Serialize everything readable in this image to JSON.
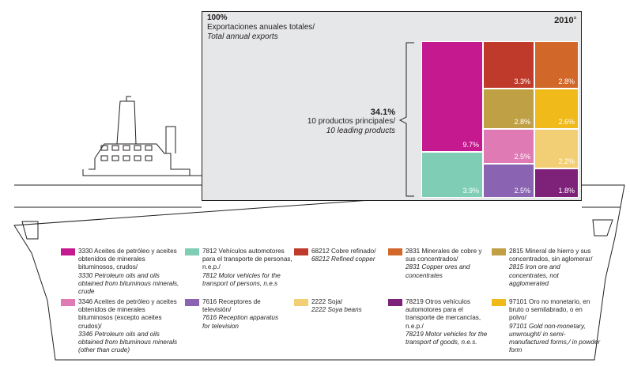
{
  "header": {
    "total_pct": "100%",
    "total_label_es": "Exportaciones anuales totales/",
    "total_label_en": "Total annual exports",
    "year": "2010",
    "year_note": "a"
  },
  "leading": {
    "pct": "34.1%",
    "label_es": "10 productos principales/",
    "label_en": "10 leading products"
  },
  "chart_data": {
    "type": "treemap",
    "total_label": "Exportaciones anuales totales/Total annual exports",
    "year": "2010",
    "leading_share": 34.1,
    "products": [
      {
        "code": "3330",
        "label_es": "Aceites de petróleo y aceites obtenidos de minerales bituminosos, crudos/",
        "label_en": "3330 Petroleum oils and oils obtained from bituminous minerals, crude",
        "value": 9.7,
        "color": "#c5198f",
        "display": "9.7%"
      },
      {
        "code": "7812",
        "label_es": "Vehículos automotores para el transporte de personas, n.e.p./",
        "label_en": "7812 Motor vehicles for the transport of persons, n.e.s",
        "value": 3.9,
        "color": "#7fcdb4",
        "display": "3.9%"
      },
      {
        "code": "68212",
        "label_es": "Cobre refinado/",
        "label_en": "68212 Refined copper",
        "value": 3.3,
        "color": "#c03a2b",
        "display": "3.3%"
      },
      {
        "code": "2831",
        "label_es": "Minerales de cobre y sus concentrados/",
        "label_en": "2831 Copper ores and concentrates",
        "value": 2.8,
        "color": "#d2672a",
        "display": "2.8%"
      },
      {
        "code": "2815",
        "label_es": "Mineral de hierro y sus concentrados, sin aglomerar/",
        "label_en": "2815 Iron ore and concentrates, not agglomerated",
        "value": 2.8,
        "color": "#bfa044",
        "display": "2.8%"
      },
      {
        "code": "97101",
        "label_es": "Oro no monetario, en bruto o semilabrado, o en polvo/",
        "label_en": "97101 Gold non-monetary, unwrought/ in semi-manufactured forms,/ in powder form",
        "value": 2.6,
        "color": "#efba1a",
        "display": "2.6%"
      },
      {
        "code": "3346",
        "label_es": "Aceites de petróleo y aceites obtenidos de minerales bituminosos (excepto aceites crudos)/",
        "label_en": "3346 Petroleum oils and oils obtained from bituminous minerals (other than crude)",
        "value": 2.5,
        "color": "#e07ab5",
        "display": "2.5%"
      },
      {
        "code": "7616",
        "label_es": "Receptores de televisión/",
        "label_en": "7616 Reception apparatus for television",
        "value": 2.5,
        "color": "#8a63b3",
        "display": "2.5%"
      },
      {
        "code": "2222",
        "label_es": "Soja/",
        "label_en": "2222 Soya beans",
        "value": 2.2,
        "color": "#f2cf74",
        "display": "2.2%"
      },
      {
        "code": "78219",
        "label_es": "Otros vehículos automotores para el transporte de mercancías, n.e.p./",
        "label_en": "78219 Motor vehicles for the transport of goods, n.e.s.",
        "value": 1.8,
        "color": "#7d2278",
        "display": "1.8%"
      }
    ]
  },
  "legend": [
    {
      "color": "#c5198f",
      "es": "3330 Aceites de petróleo y aceites obtenidos de minerales bituminosos, crudos/",
      "en": "3330 Petroleum oils and oils obtained from bituminous minerals, crude"
    },
    {
      "color": "#7fcdb4",
      "es": "7812 Vehículos automotores para el transporte de personas, n.e.p./",
      "en": "7812 Motor vehicles for the transport of persons, n.e.s"
    },
    {
      "color": "#c03a2b",
      "es": "68212 Cobre refinado/",
      "en": "68212 Refined copper"
    },
    {
      "color": "#d2672a",
      "es": "2831 Minerales de cobre y sus concentrados/",
      "en": "2831 Copper ores and concentrates"
    },
    {
      "color": "#bfa044",
      "es": "2815 Mineral de hierro y sus concentrados, sin aglomerar/",
      "en": "2815 Iron ore and concentrates, not agglomerated"
    },
    {
      "color": "#e07ab5",
      "es": "3346 Aceites de petróleo y aceites obtenidos de minerales bituminosos (excepto aceites crudos)/",
      "en": "3346 Petroleum oils and oils obtained from bituminous minerals (other than crude)"
    },
    {
      "color": "#8a63b3",
      "es": "7616 Receptores de televisión/",
      "en": "7616 Reception apparatus for television"
    },
    {
      "color": "#f2cf74",
      "es": "2222 Soja/",
      "en": "2222 Soya beans"
    },
    {
      "color": "#7d2278",
      "es": "78219 Otros vehículos automotores para el transporte de mercancías, n.e.p./",
      "en": "78219 Motor vehicles for the transport of goods, n.e.s."
    },
    {
      "color": "#efba1a",
      "es": "97101 Oro no monetario, en bruto o semilabrado, o en polvo/",
      "en": "97101 Gold non-monetary, unwrought/ in semi-manufactured forms,/ in powder form"
    }
  ]
}
